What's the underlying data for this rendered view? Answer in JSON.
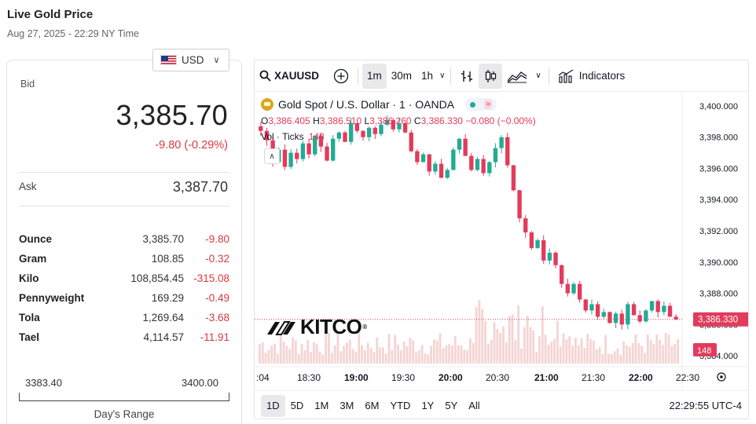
{
  "header": {
    "title": "Live Gold Price",
    "subtitle": "Aug 27, 2025 - 22:29 NY Time"
  },
  "currency": {
    "selected": "USD"
  },
  "quote": {
    "bid_label": "Bid",
    "bid": "3,385.70",
    "change": "-9.80 (-0.29%)",
    "ask_label": "Ask",
    "ask": "3,387.70"
  },
  "units": [
    {
      "name": "Ounce",
      "price": "3,385.70",
      "change": "-9.80"
    },
    {
      "name": "Gram",
      "price": "108.85",
      "change": "-0.32"
    },
    {
      "name": "Kilo",
      "price": "108,854.45",
      "change": "-315.08"
    },
    {
      "name": "Pennyweight",
      "price": "169.29",
      "change": "-0.49"
    },
    {
      "name": "Tola",
      "price": "1,269.64",
      "change": "-3.68"
    },
    {
      "name": "Tael",
      "price": "4,114.57",
      "change": "-11.91"
    }
  ],
  "days_range": {
    "low": "3383.40",
    "high": "3400.00",
    "label": "Day's Range"
  },
  "toolbar": {
    "symbol": "XAUUSD",
    "intervals": [
      "1m",
      "30m",
      "1h"
    ],
    "active_interval": "1m",
    "indicators_label": "Indicators"
  },
  "legend": {
    "title": "Gold Spot / U.S. Dollar · 1 · OANDA",
    "ohlc": {
      "o_label": "O",
      "o": "3,386.405",
      "h_label": "H",
      "h": "3,386.510",
      "l_label": "L",
      "l": "3,386.260",
      "c_label": "C",
      "c": "3,386.330",
      "chg": "−0.080 (−0.00%)"
    },
    "volume_label": "Vol · Ticks",
    "volume_value": "148"
  },
  "brand": {
    "name": "KITCO",
    "mark": "®"
  },
  "chart_data": {
    "type": "candlestick",
    "x_ticks": [
      ":04",
      "18:30",
      "19:00",
      "19:30",
      "20:00",
      "20:30",
      "21:00",
      "21:30",
      "22:00",
      "22:30"
    ],
    "y_ticks": [
      "3,400.000",
      "3,398.000",
      "3,396.000",
      "3,394.000",
      "3,392.000",
      "3,390.000",
      "3,388.000",
      "3,386.000",
      "3,384.000"
    ],
    "ylim": [
      3383.5,
      3400.5
    ],
    "last_price": "3,386.330",
    "last_volume": "148",
    "close_path": [
      3398.4,
      3397.8,
      3396.4,
      3397.2,
      3396.1,
      3397.0,
      3396.6,
      3397.6,
      3396.9,
      3398.1,
      3397.4,
      3396.5,
      3397.9,
      3398.3,
      3397.7,
      3398.9,
      3398.4,
      3398.0,
      3398.6,
      3398.2,
      3398.8,
      3399.1,
      3398.5,
      3398.9,
      3398.3,
      3397.1,
      3396.4,
      3396.9,
      3395.8,
      3396.3,
      3395.4,
      3395.9,
      3397.2,
      3397.9,
      3396.8,
      3395.9,
      3396.6,
      3395.7,
      3396.4,
      3397.3,
      3398.0,
      3396.2,
      3394.6,
      3392.8,
      3391.9,
      3390.9,
      3391.4,
      3390.1,
      3390.6,
      3389.8,
      3388.6,
      3388.0,
      3388.6,
      3387.6,
      3386.9,
      3387.3,
      3386.5,
      3386.8,
      3386.1,
      3386.7,
      3386.0,
      3387.3,
      3386.6,
      3386.2,
      3386.9,
      3387.5,
      3386.8,
      3387.2,
      3386.5,
      3386.33
    ],
    "volume_color": "#f2c9c9",
    "up_color": "#22ab94",
    "down_color": "#e23b5c"
  },
  "time_ranges": [
    "1D",
    "5D",
    "1M",
    "3M",
    "6M",
    "YTD",
    "1Y",
    "5Y",
    "All"
  ],
  "active_range": "1D",
  "clock": "22:29:55 UTC-4"
}
